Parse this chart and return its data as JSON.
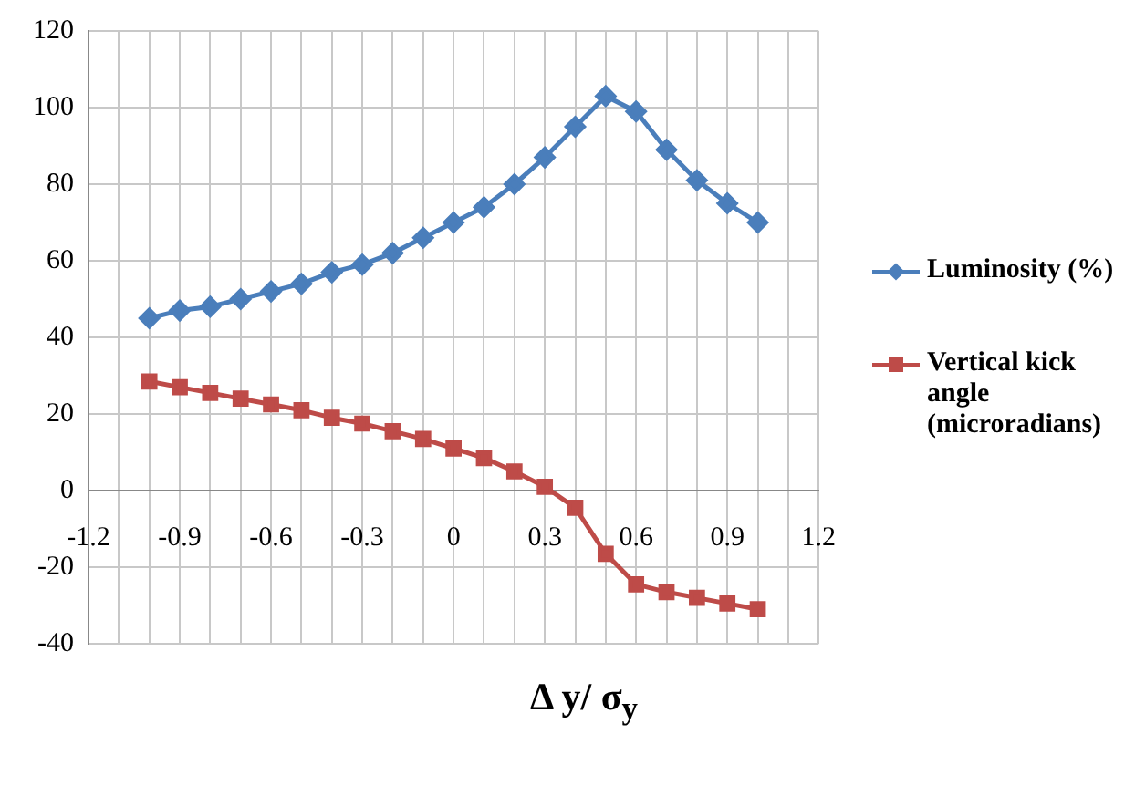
{
  "chart_data": {
    "type": "line",
    "xlabel": "Δ y/ σ$_{y}$",
    "x": [
      -1,
      -0.9,
      -0.8,
      -0.7,
      -0.6,
      -0.5,
      -0.4,
      -0.3,
      -0.2,
      -0.1,
      0,
      0.1,
      0.2,
      0.3,
      0.4,
      0.5,
      0.6,
      0.7,
      0.8,
      0.9,
      1
    ],
    "series": [
      {
        "name": "Luminosity (%)",
        "color": "#4a7ebb",
        "marker": "diamond",
        "values": [
          45,
          47,
          48,
          50,
          52,
          54,
          57,
          59,
          62,
          66,
          70,
          74,
          80,
          87,
          95,
          103,
          99,
          89,
          81,
          75,
          70
        ]
      },
      {
        "name": "Vertical kick angle (microradians)",
        "color": "#be4b48",
        "marker": "square",
        "values": [
          28.5,
          27,
          25.5,
          24,
          22.5,
          21,
          19,
          17.5,
          15.5,
          13.5,
          11,
          8.5,
          5,
          1,
          -4.5,
          -16.5,
          -24.5,
          -26.5,
          -28,
          -29.5,
          -31
        ]
      }
    ],
    "xlim": [
      -1.2,
      1.2
    ],
    "xticks": [
      -1.2,
      {
        "value": -1.1,
        "label": null
      },
      {
        "value": -1.0,
        "label": null
      },
      -0.9,
      {
        "value": -0.8,
        "label": null
      },
      {
        "value": -0.7,
        "label": null
      },
      -0.6,
      {
        "value": -0.5,
        "label": null
      },
      {
        "value": -0.4,
        "label": null
      },
      -0.3,
      {
        "value": -0.2,
        "label": null
      },
      {
        "value": -0.1,
        "label": null
      },
      0,
      {
        "value": 0.1,
        "label": null
      },
      {
        "value": 0.2,
        "label": null
      },
      0.3,
      {
        "value": 0.4,
        "label": null
      },
      {
        "value": 0.5,
        "label": null
      },
      0.6,
      {
        "value": 0.7,
        "label": null
      },
      {
        "value": 0.8,
        "label": null
      },
      0.9,
      {
        "value": 1.0,
        "label": null
      },
      {
        "value": 1.1,
        "label": null
      },
      1.2
    ],
    "ylim": [
      -40,
      120
    ],
    "yticks": [
      -40,
      -20,
      0,
      20,
      40,
      60,
      80,
      100,
      120
    ],
    "grid": true,
    "legend": "right",
    "line_style": "solid"
  }
}
